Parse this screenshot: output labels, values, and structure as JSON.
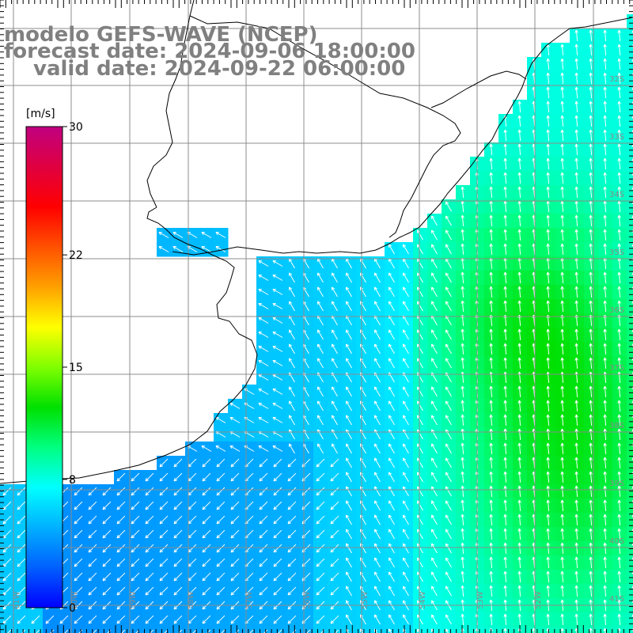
{
  "title": {
    "model": "modelo GEFS-WAVE (NCEP)",
    "forecast": "forecast date: 2024-09-06 18:00:00",
    "valid": "valid date: 2024-09-22 06:00:00"
  },
  "colorbar": {
    "unit": "[m/s]",
    "ticks": [
      {
        "value": 30,
        "label": "30"
      },
      {
        "value": 22,
        "label": "22"
      },
      {
        "value": 15,
        "label": "15"
      },
      {
        "value": 8,
        "label": "8"
      },
      {
        "value": 0,
        "label": "0"
      }
    ],
    "colors": [
      "#0000ff",
      "#0060ff",
      "#00b0ff",
      "#00ffff",
      "#00ff80",
      "#00e000",
      "#80ff00",
      "#ffff00",
      "#ffa000",
      "#ff5000",
      "#ff0000",
      "#e00040",
      "#c00080"
    ]
  },
  "lat_labels": [
    "32S",
    "33S",
    "34S",
    "35S",
    "36S",
    "37S",
    "38S",
    "39S",
    "40S",
    "41S"
  ],
  "lon_labels": [
    "61W",
    "60W",
    "59W",
    "58W",
    "57W",
    "56W",
    "55W",
    "54W",
    "53W",
    "52W"
  ],
  "map": {
    "projection": "lat-lon",
    "lat_range": [
      -41.5,
      -31
    ],
    "lon_range": [
      -62,
      -51
    ],
    "grid": true,
    "field": "wind speed with direction arrows",
    "region": "Rio de la Plata / Uruguay / Buenos Aires coast"
  }
}
